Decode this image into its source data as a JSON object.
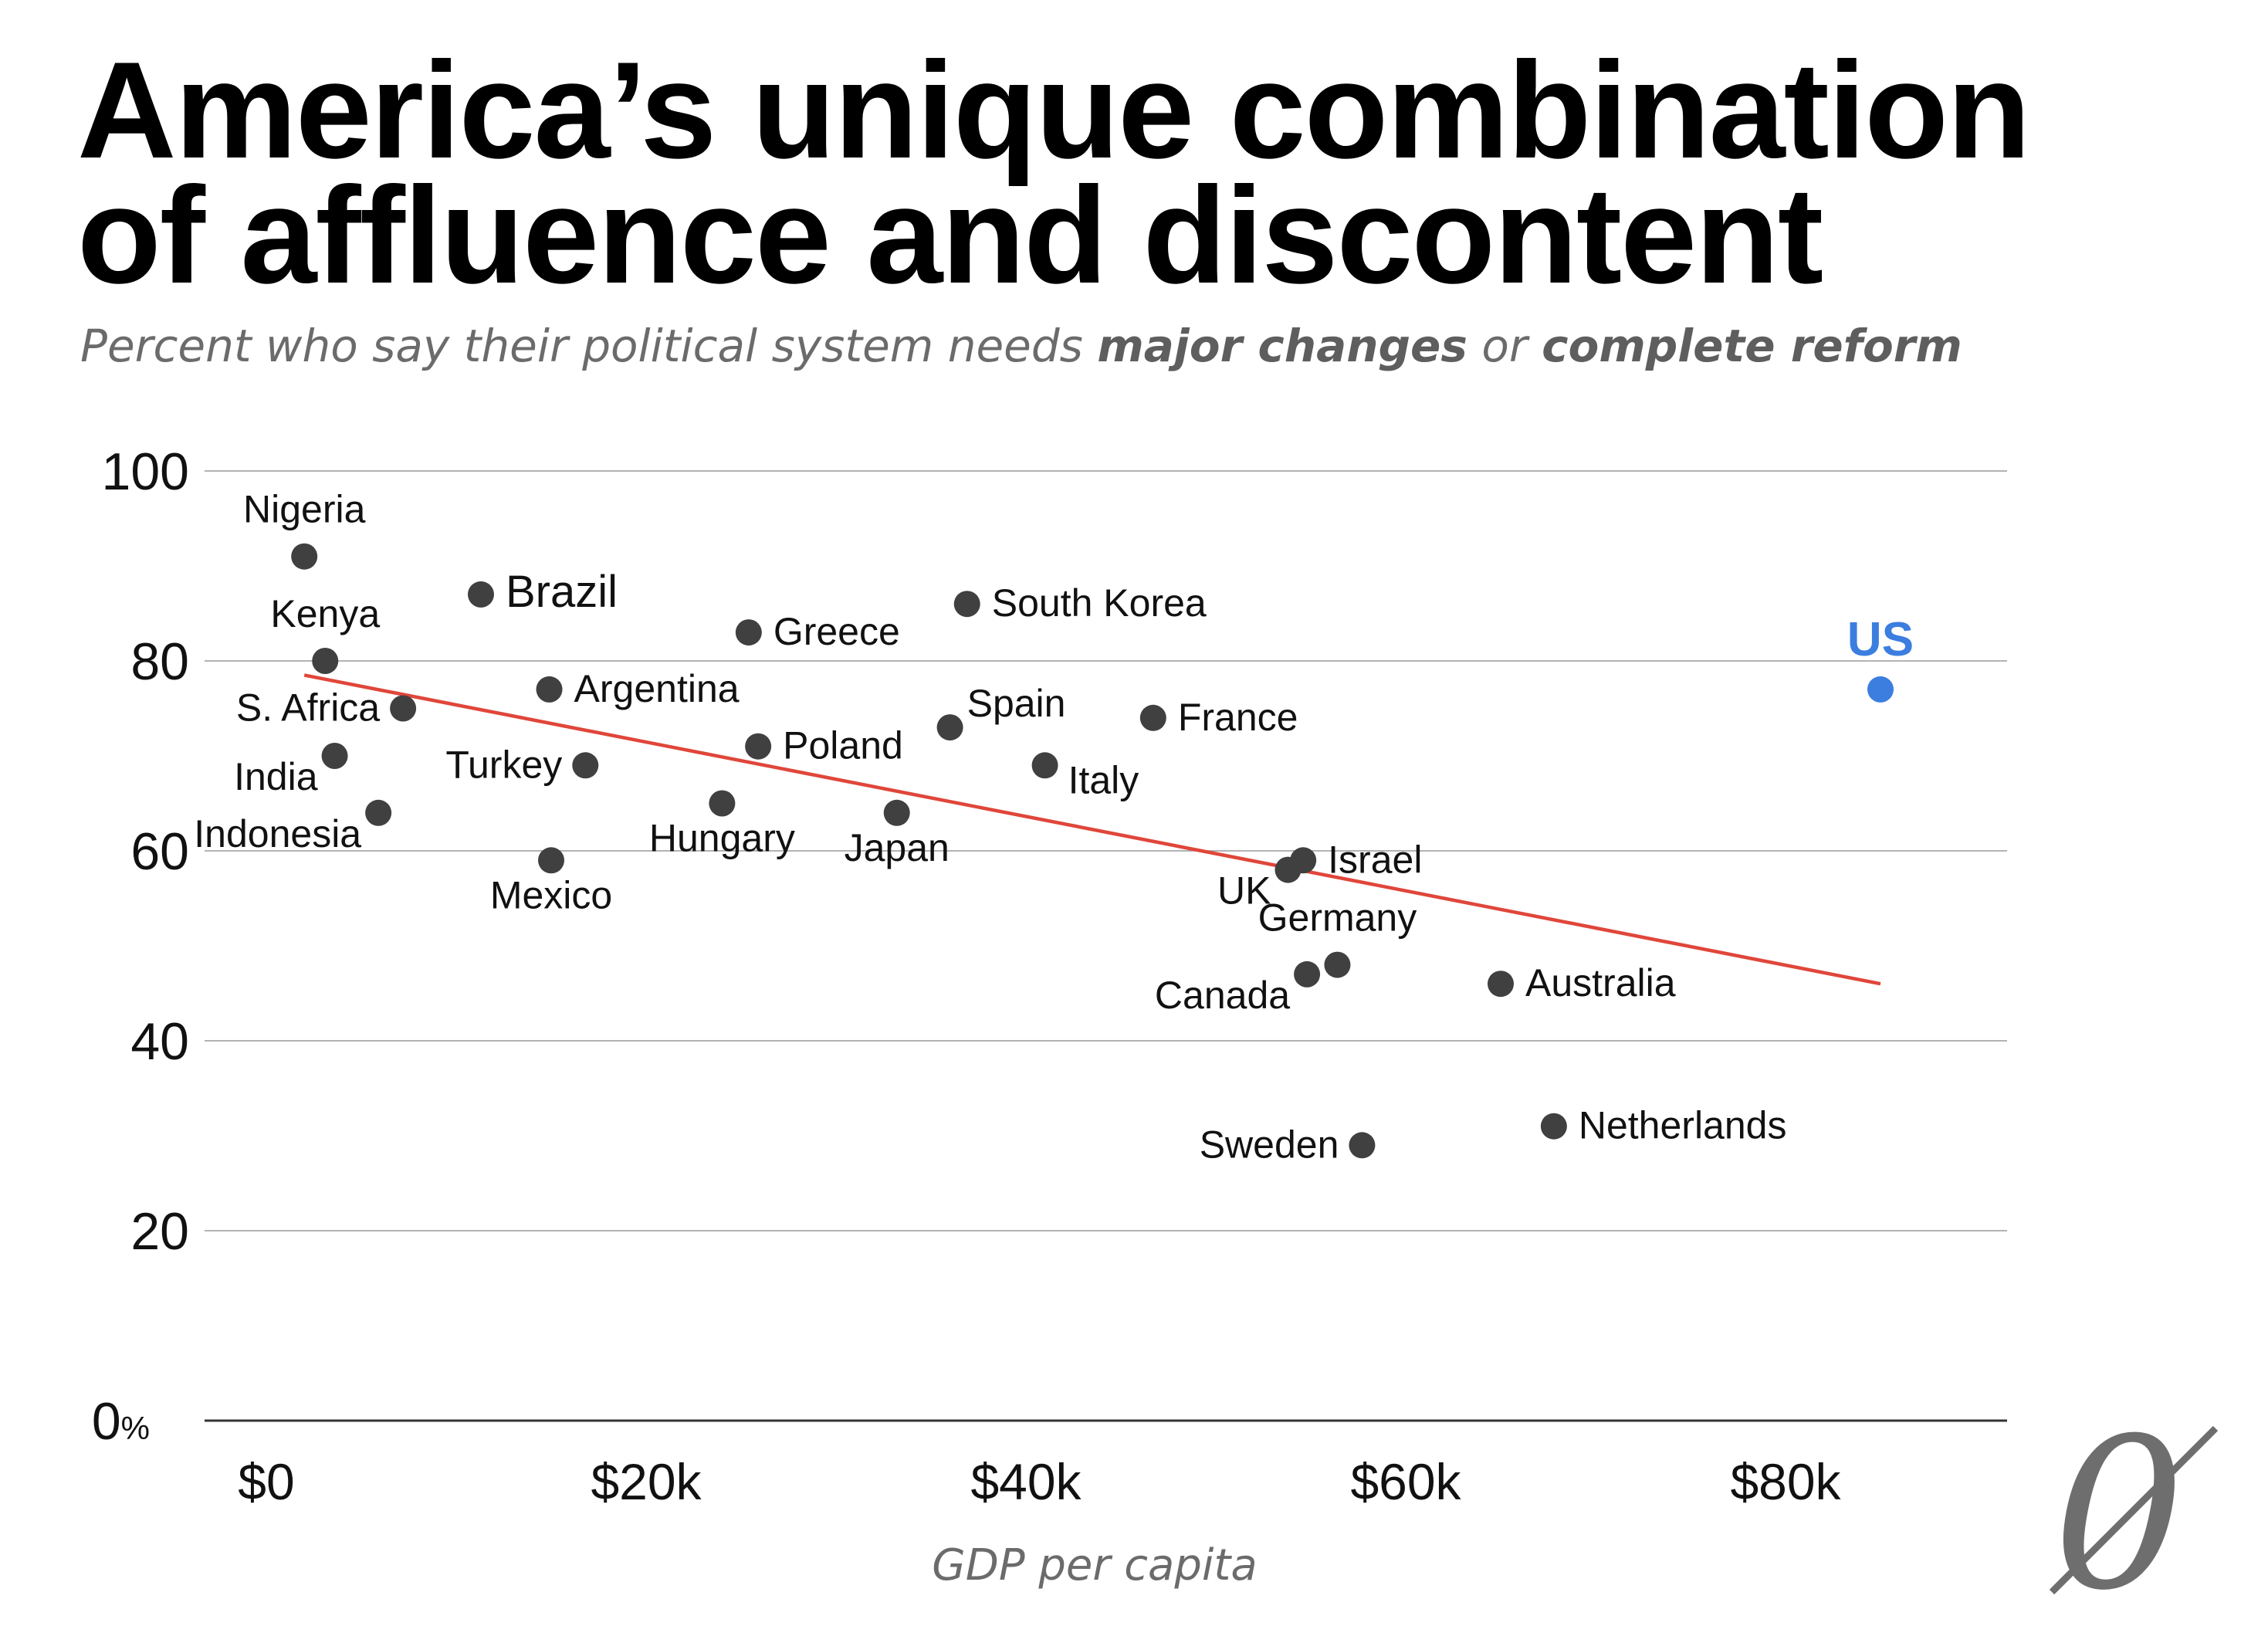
{
  "title_lines": [
    "America’s unique combination",
    "of affluence and discontent"
  ],
  "subtitle": {
    "part1": "Percent who say their political system needs ",
    "bold1": "major changes",
    "part2": " or ",
    "bold2": "complete reform"
  },
  "logo": {
    "glyph": "0",
    "name": "publication-logo"
  },
  "colors": {
    "point": "#404040",
    "highlight": "#3c7ee0",
    "trend": "#e0463a",
    "grid": "#9a9a9a",
    "axis": "#333333"
  },
  "chart_data": {
    "type": "scatter",
    "title": "America’s unique combination of affluence and discontent",
    "subtitle": "Percent who say their political system needs major changes or complete reform",
    "xlabel": "GDP per capita",
    "ylabel": "",
    "xlim": [
      -2,
      92
    ],
    "ylim": [
      0,
      100
    ],
    "x_ticks": [
      {
        "value": 0,
        "label": "$0"
      },
      {
        "value": 20,
        "label": "$20k"
      },
      {
        "value": 40,
        "label": "$40k"
      },
      {
        "value": 60,
        "label": "$60k"
      },
      {
        "value": 80,
        "label": "$80k"
      }
    ],
    "y_ticks": [
      {
        "value": 0,
        "label": "0",
        "suffix": "%"
      },
      {
        "value": 20,
        "label": "20"
      },
      {
        "value": 40,
        "label": "40"
      },
      {
        "value": 60,
        "label": "60"
      },
      {
        "value": 80,
        "label": "80"
      },
      {
        "value": 100,
        "label": "100"
      }
    ],
    "grid": true,
    "trendline": {
      "x": [
        2,
        85
      ],
      "y": [
        78.5,
        46
      ]
    },
    "points": [
      {
        "name": "Nigeria",
        "x": 2,
        "y": 91,
        "label_pos": "above"
      },
      {
        "name": "Kenya",
        "x": 3.1,
        "y": 80,
        "label_pos": "above"
      },
      {
        "name": "S. Africa",
        "x": 7.2,
        "y": 75,
        "label_pos": "left"
      },
      {
        "name": "India",
        "x": 3.6,
        "y": 70,
        "label_pos": "below-left"
      },
      {
        "name": "Indonesia",
        "x": 5.9,
        "y": 64,
        "label_pos": "below-left"
      },
      {
        "name": "Brazil",
        "x": 11.3,
        "y": 87,
        "label_pos": "right"
      },
      {
        "name": "Argentina",
        "x": 14.9,
        "y": 77,
        "label_pos": "right"
      },
      {
        "name": "Turkey",
        "x": 16.8,
        "y": 69,
        "label_pos": "left"
      },
      {
        "name": "Mexico",
        "x": 15,
        "y": 59,
        "label_pos": "below"
      },
      {
        "name": "Hungary",
        "x": 24,
        "y": 65,
        "label_pos": "below"
      },
      {
        "name": "Greece",
        "x": 25.4,
        "y": 83,
        "label_pos": "right"
      },
      {
        "name": "Poland",
        "x": 25.9,
        "y": 71,
        "label_pos": "right"
      },
      {
        "name": "Japan",
        "x": 33.2,
        "y": 64,
        "label_pos": "below"
      },
      {
        "name": "Spain",
        "x": 36,
        "y": 73,
        "label_pos": "above-right"
      },
      {
        "name": "South Korea",
        "x": 36.9,
        "y": 86,
        "label_pos": "right"
      },
      {
        "name": "Italy",
        "x": 41,
        "y": 69,
        "label_pos": "below-right"
      },
      {
        "name": "France",
        "x": 46.7,
        "y": 74,
        "label_pos": "right"
      },
      {
        "name": "UK",
        "x": 53.8,
        "y": 58,
        "label_pos": "below-left"
      },
      {
        "name": "Israel",
        "x": 54.6,
        "y": 59,
        "label_pos": "right"
      },
      {
        "name": "Germany",
        "x": 56.4,
        "y": 48,
        "label_pos": "above"
      },
      {
        "name": "Canada",
        "x": 54.8,
        "y": 47,
        "label_pos": "below-left"
      },
      {
        "name": "Australia",
        "x": 65,
        "y": 46,
        "label_pos": "right"
      },
      {
        "name": "Sweden",
        "x": 57.7,
        "y": 29,
        "label_pos": "left"
      },
      {
        "name": "Netherlands",
        "x": 67.8,
        "y": 31,
        "label_pos": "right"
      },
      {
        "name": "US",
        "x": 85,
        "y": 77,
        "label_pos": "above",
        "highlight": true
      }
    ]
  }
}
